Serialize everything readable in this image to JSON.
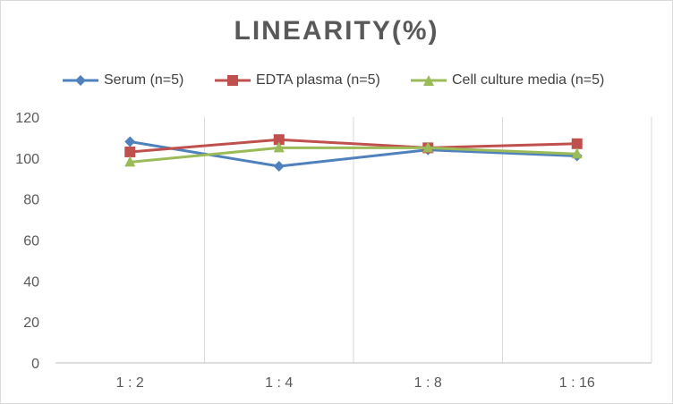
{
  "chart_data": {
    "type": "line",
    "title": "LINEARITY(%)",
    "categories": [
      "1 : 2",
      "1 : 4",
      "1 : 8",
      "1 : 16"
    ],
    "ylim": [
      0,
      120
    ],
    "yticks": [
      0,
      20,
      40,
      60,
      80,
      100,
      120
    ],
    "grid": "vertical",
    "legend_position": "top",
    "series": [
      {
        "name": "Serum (n=5)",
        "values": [
          108,
          96,
          104,
          101
        ],
        "color": "#4f81bd",
        "marker": "diamond"
      },
      {
        "name": "EDTA plasma (n=5)",
        "values": [
          103,
          109,
          105,
          107
        ],
        "color": "#c0504d",
        "marker": "square"
      },
      {
        "name": "Cell culture media (n=5)",
        "values": [
          98,
          105,
          105,
          102
        ],
        "color": "#9bbb59",
        "marker": "triangle"
      }
    ]
  }
}
